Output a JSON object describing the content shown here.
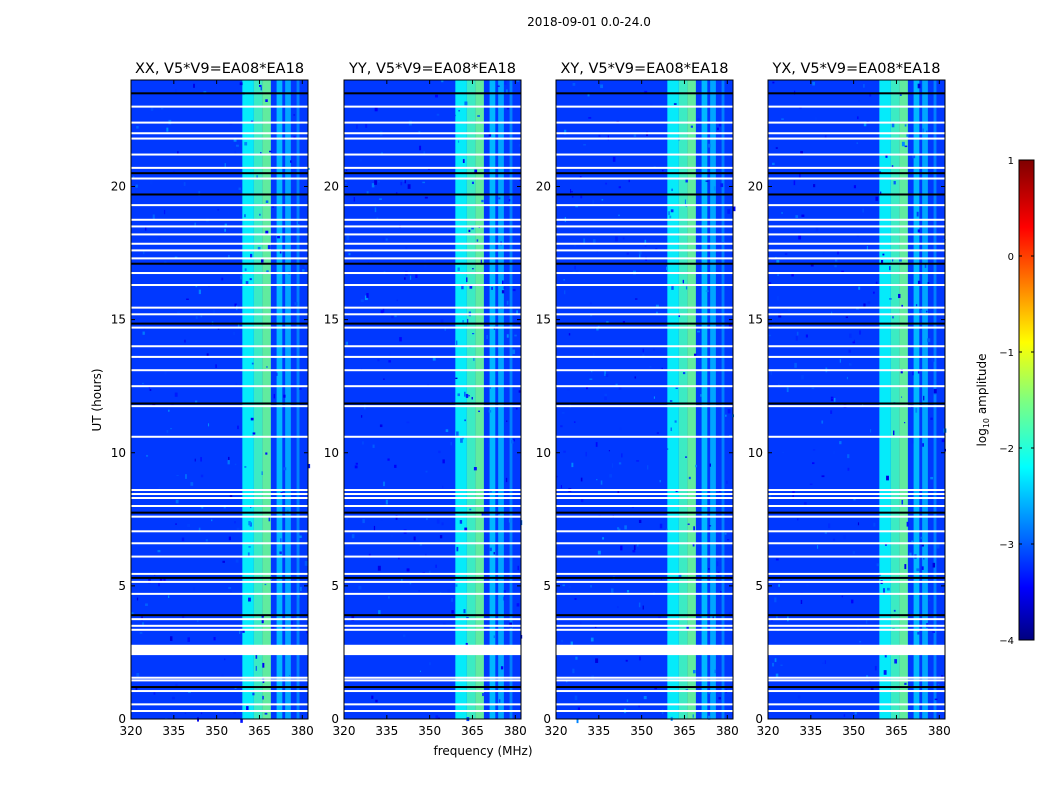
{
  "chart_data": {
    "type": "heatmap",
    "suptitle": "2018-09-01 0.0-24.0",
    "panels": [
      {
        "title": "XX, V5*V9=EA08*EA18"
      },
      {
        "title": "YY, V5*V9=EA08*EA18"
      },
      {
        "title": "XY, V5*V9=EA08*EA18"
      },
      {
        "title": "YX, V5*V9=EA08*EA18"
      }
    ],
    "xlabel": "frequency (MHz)",
    "ylabel": "UT (hours)",
    "xlim": [
      320,
      382
    ],
    "ylim": [
      0,
      24
    ],
    "xticks": [
      320,
      335,
      350,
      365,
      380
    ],
    "yticks": [
      0,
      5,
      10,
      15,
      20
    ],
    "colorbar": {
      "label_prefix": "log",
      "label_sub": "10",
      "label_suffix": " amplitude",
      "range": [
        -4,
        1
      ],
      "ticks": [
        "−4",
        "−3",
        "−2",
        "−1",
        "0",
        "1"
      ],
      "colormap": "jet"
    },
    "background_level": -3.1,
    "rfi_bands_mhz": [
      {
        "from": 359,
        "to": 363,
        "level": -2.1
      },
      {
        "from": 363,
        "to": 366,
        "level": -1.8
      },
      {
        "from": 366,
        "to": 369,
        "level": -1.6
      },
      {
        "from": 371,
        "to": 373,
        "level": -2.4
      },
      {
        "from": 374,
        "to": 376,
        "level": -2.5
      },
      {
        "from": 378,
        "to": 379,
        "level": -2.7
      }
    ],
    "flagged_hours": [
      0.3,
      0.55,
      1.05,
      1.45,
      1.55,
      2.75,
      3.35,
      3.5,
      3.75,
      4.7,
      5.15,
      5.45,
      6.1,
      6.6,
      7.05,
      7.6,
      8.0,
      8.3,
      8.45,
      8.6,
      10.6,
      11.75,
      12.5,
      13.1,
      13.6,
      14.0,
      14.7,
      15.2,
      15.45,
      16.3,
      16.75,
      17.3,
      17.6,
      17.85,
      18.2,
      18.5,
      18.75,
      19.3,
      20.3,
      20.7,
      21.2,
      21.8,
      22.0,
      22.4,
      23.0
    ],
    "dropout_hours": [
      1.2,
      3.9,
      5.3,
      7.75,
      11.85,
      14.85,
      17.1,
      19.7,
      20.5,
      23.5
    ],
    "gap_hours": [
      2.4,
      2.75
    ]
  }
}
